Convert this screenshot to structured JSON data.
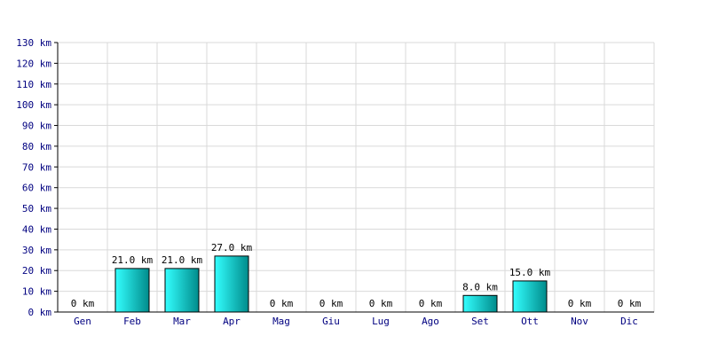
{
  "chart_data": {
    "type": "bar",
    "categories": [
      "Gen",
      "Feb",
      "Mar",
      "Apr",
      "Mag",
      "Giu",
      "Lug",
      "Ago",
      "Set",
      "Ott",
      "Nov",
      "Dic"
    ],
    "values": [
      0,
      21.0,
      21.0,
      27.0,
      0,
      0,
      0,
      0,
      8.0,
      15.0,
      0,
      0
    ],
    "data_labels": [
      "0 km",
      "21.0 km",
      "21.0 km",
      "27.0 km",
      "0 km",
      "0 km",
      "0 km",
      "0 km",
      "8.0 km",
      "15.0 km",
      "0 km",
      "0 km"
    ],
    "y_ticks": [
      0,
      10,
      20,
      30,
      40,
      50,
      60,
      70,
      80,
      90,
      100,
      110,
      120,
      130
    ],
    "y_tick_labels": [
      "0 km",
      "10 km",
      "20 km",
      "30 km",
      "40 km",
      "50 km",
      "60 km",
      "70 km",
      "80 km",
      "90 km",
      "100 km",
      "110 km",
      "120 km",
      "130 km"
    ],
    "ylim": [
      0,
      130
    ],
    "grid": true,
    "title": "",
    "xlabel": "",
    "ylabel": "",
    "colors": {
      "bar_light": "#33ffff",
      "bar_dark": "#008b8b",
      "bar_stroke": "#000000",
      "grid": "#d9d9d9",
      "axis": "#000000",
      "tick_text": "#000080"
    }
  }
}
